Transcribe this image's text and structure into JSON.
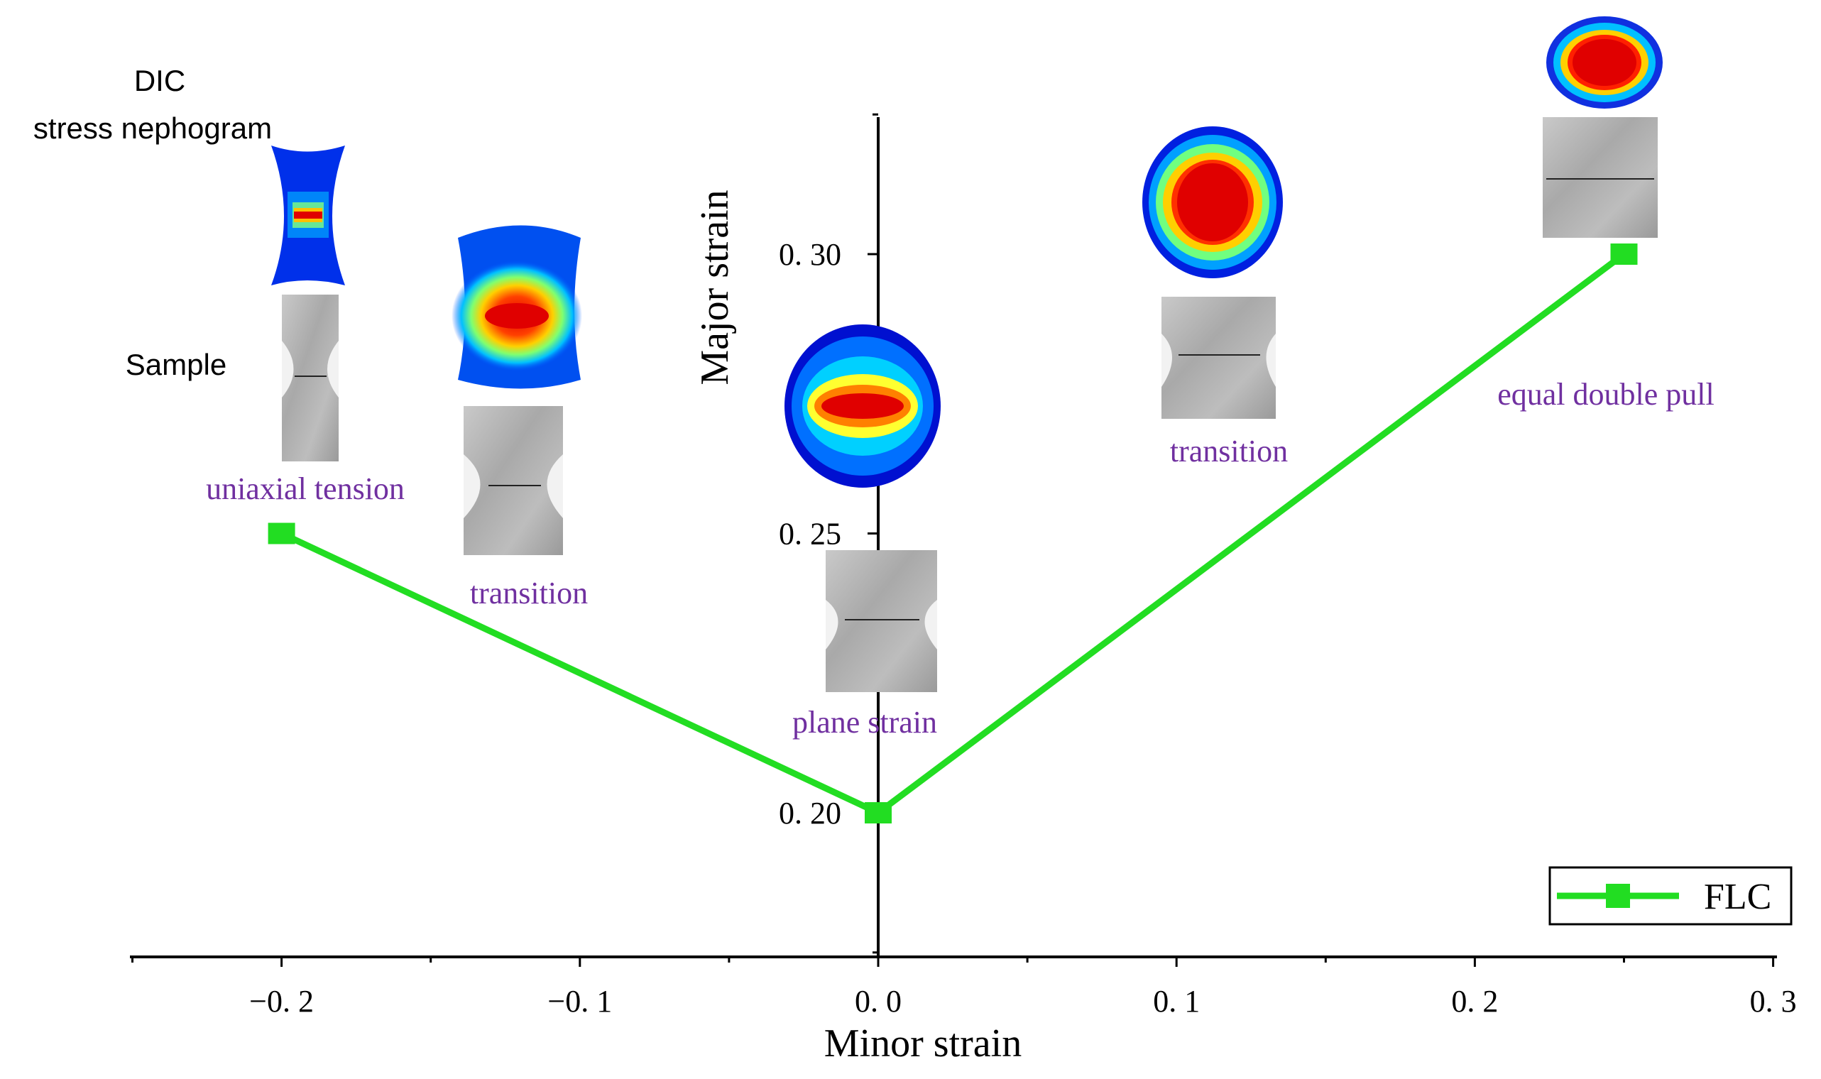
{
  "chart_data": {
    "type": "line",
    "title": "",
    "xlabel": "Minor strain",
    "ylabel": "Major strain",
    "xlim": [
      -0.25,
      0.3
    ],
    "ylim": [
      0.17,
      0.33
    ],
    "x_ticks": [
      {
        "value": -0.2,
        "label": "−0. 2"
      },
      {
        "value": -0.1,
        "label": "−0. 1"
      },
      {
        "value": 0.0,
        "label": "0. 0"
      },
      {
        "value": 0.1,
        "label": "0. 1"
      },
      {
        "value": 0.2,
        "label": "0. 2"
      },
      {
        "value": 0.3,
        "label": "0. 3"
      }
    ],
    "y_ticks": [
      {
        "value": 0.2,
        "label": "0. 20"
      },
      {
        "value": 0.25,
        "label": "0. 25"
      },
      {
        "value": 0.3,
        "label": "0. 30"
      }
    ],
    "series": [
      {
        "name": "FLC",
        "color": "#22dd22",
        "x": [
          -0.2,
          0.0,
          0.25
        ],
        "y": [
          0.25,
          0.2,
          0.3
        ]
      }
    ],
    "legend_position": "bottom-right",
    "annotations": [
      {
        "text": "uniaxial tension",
        "color": "#7030a0"
      },
      {
        "text": "transition",
        "color": "#7030a0"
      },
      {
        "text": "plane  strain",
        "color": "#7030a0"
      },
      {
        "text": "transition",
        "color": "#7030a0"
      },
      {
        "text": "equal double pull",
        "color": "#7030a0"
      }
    ],
    "header_labels": {
      "dic_line1": "DIC",
      "dic_line2": "stress nephogram",
      "sample": "Sample"
    }
  }
}
